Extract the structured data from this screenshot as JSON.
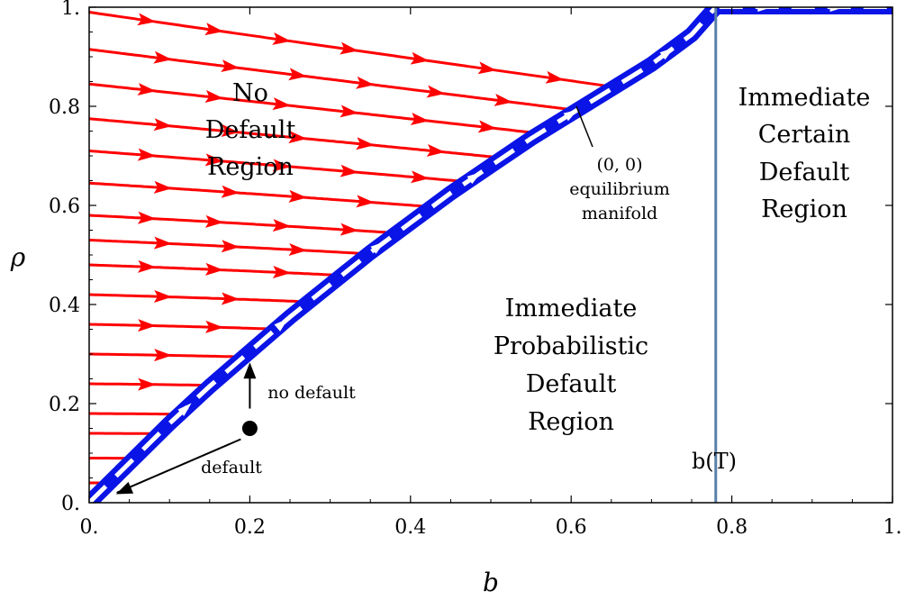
{
  "chart_data": {
    "type": "line",
    "title": "",
    "xlabel": "b",
    "ylabel": "ρ",
    "xlim": [
      0,
      1
    ],
    "ylim": [
      0,
      1
    ],
    "x_ticks": [
      {
        "value": 0,
        "label": "0."
      },
      {
        "value": 0.2,
        "label": "0.2"
      },
      {
        "value": 0.4,
        "label": "0.4"
      },
      {
        "value": 0.6,
        "label": "0.6"
      },
      {
        "value": 0.8,
        "label": "0.8"
      },
      {
        "value": 1,
        "label": "1."
      }
    ],
    "y_ticks": [
      {
        "value": 0,
        "label": "0."
      },
      {
        "value": 0.2,
        "label": "0.2"
      },
      {
        "value": 0.4,
        "label": "0.4"
      },
      {
        "value": 0.6,
        "label": "0.6"
      },
      {
        "value": 0.8,
        "label": "0.8"
      },
      {
        "value": 1,
        "label": "1."
      }
    ],
    "equilibrium_curve": {
      "color": "#0a14e6",
      "points": [
        [
          0,
          0
        ],
        [
          0.05,
          0.08
        ],
        [
          0.1,
          0.16
        ],
        [
          0.15,
          0.235
        ],
        [
          0.2,
          0.305
        ],
        [
          0.25,
          0.375
        ],
        [
          0.3,
          0.44
        ],
        [
          0.35,
          0.505
        ],
        [
          0.4,
          0.565
        ],
        [
          0.45,
          0.625
        ],
        [
          0.5,
          0.68
        ],
        [
          0.55,
          0.735
        ],
        [
          0.6,
          0.785
        ],
        [
          0.65,
          0.835
        ],
        [
          0.7,
          0.885
        ],
        [
          0.75,
          0.945
        ],
        [
          0.78,
          1.0
        ]
      ]
    },
    "top_segment": {
      "x": [
        0.78,
        1.0
      ],
      "y": 1.0,
      "color": "#0a14e6"
    },
    "threshold": {
      "x": 0.78,
      "label": "b(T)",
      "color": "#5a7fa8"
    },
    "flow_lines": {
      "color": "#ff0000",
      "start_y": [
        0.04,
        0.09,
        0.14,
        0.18,
        0.24,
        0.3,
        0.36,
        0.42,
        0.48,
        0.53,
        0.58,
        0.645,
        0.71,
        0.775,
        0.845,
        0.915,
        0.99
      ]
    },
    "point": {
      "x": 0.2,
      "y": 0.15
    },
    "annotations": {
      "no_default_region": [
        "No",
        "Default",
        "Region"
      ],
      "certain_default_region": [
        "Immediate",
        "Certain",
        "Default",
        "Region"
      ],
      "probabilistic_default_region": [
        "Immediate",
        "Probabilistic",
        "Default",
        "Region"
      ],
      "manifold": [
        "(0, 0)",
        "equilibrium",
        "manifold"
      ],
      "no_default": "no default",
      "default": "default"
    }
  }
}
